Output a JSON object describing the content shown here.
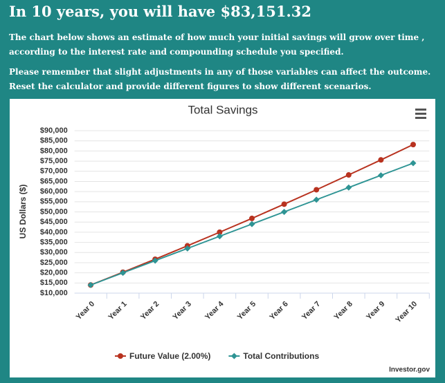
{
  "header": {
    "title": "In 10 years, you will have $83,151.32",
    "paragraphs": [
      "The chart below shows an estimate of how much your initial savings will grow over time , according to the interest rate and compounding schedule you specified.",
      "Please remember that slight adjustments in any of those variables can affect the outcome. Reset the calculator and provide different figures to show different scenarios."
    ]
  },
  "chart_data": {
    "type": "line",
    "title": "Total Savings",
    "y_label": "US Dollars ($)",
    "categories": [
      "Year 0",
      "Year 1",
      "Year 2",
      "Year 3",
      "Year 4",
      "Year 5",
      "Year 6",
      "Year 7",
      "Year 8",
      "Year 9",
      "Year 10"
    ],
    "series": [
      {
        "name": "Future Value (2.00%)",
        "color": "#b8321f",
        "marker": "circle",
        "values": [
          14000,
          20300,
          26700,
          33300,
          40000,
          46800,
          53800,
          60900,
          68200,
          75600,
          83151.32
        ]
      },
      {
        "name": "Total Contributions",
        "color": "#2e9494",
        "marker": "diamond",
        "values": [
          14000,
          20000,
          26000,
          32000,
          38000,
          44000,
          50000,
          56000,
          62000,
          68000,
          74000
        ]
      }
    ],
    "ylim": [
      10000,
      90000
    ],
    "yticks": [
      {
        "value": 10000,
        "label": "$10,000"
      },
      {
        "value": 15000,
        "label": "$15,000"
      },
      {
        "value": 20000,
        "label": "$20,000"
      },
      {
        "value": 25000,
        "label": "$25,000"
      },
      {
        "value": 30000,
        "label": "$30,000"
      },
      {
        "value": 35000,
        "label": "$35,000"
      },
      {
        "value": 40000,
        "label": "$40,000"
      },
      {
        "value": 45000,
        "label": "$45,000"
      },
      {
        "value": 50000,
        "label": "$50,000"
      },
      {
        "value": 55000,
        "label": "$55,000"
      },
      {
        "value": 60000,
        "label": "$60,000"
      },
      {
        "value": 65000,
        "label": "$65,000"
      },
      {
        "value": 70000,
        "label": "$70,000"
      },
      {
        "value": 75000,
        "label": "$75,000"
      },
      {
        "value": 80000,
        "label": "$80,000"
      },
      {
        "value": 85000,
        "label": "$85,000"
      },
      {
        "value": 90000,
        "label": "$90,000"
      }
    ],
    "grid": true,
    "credit": "Investor.gov"
  }
}
